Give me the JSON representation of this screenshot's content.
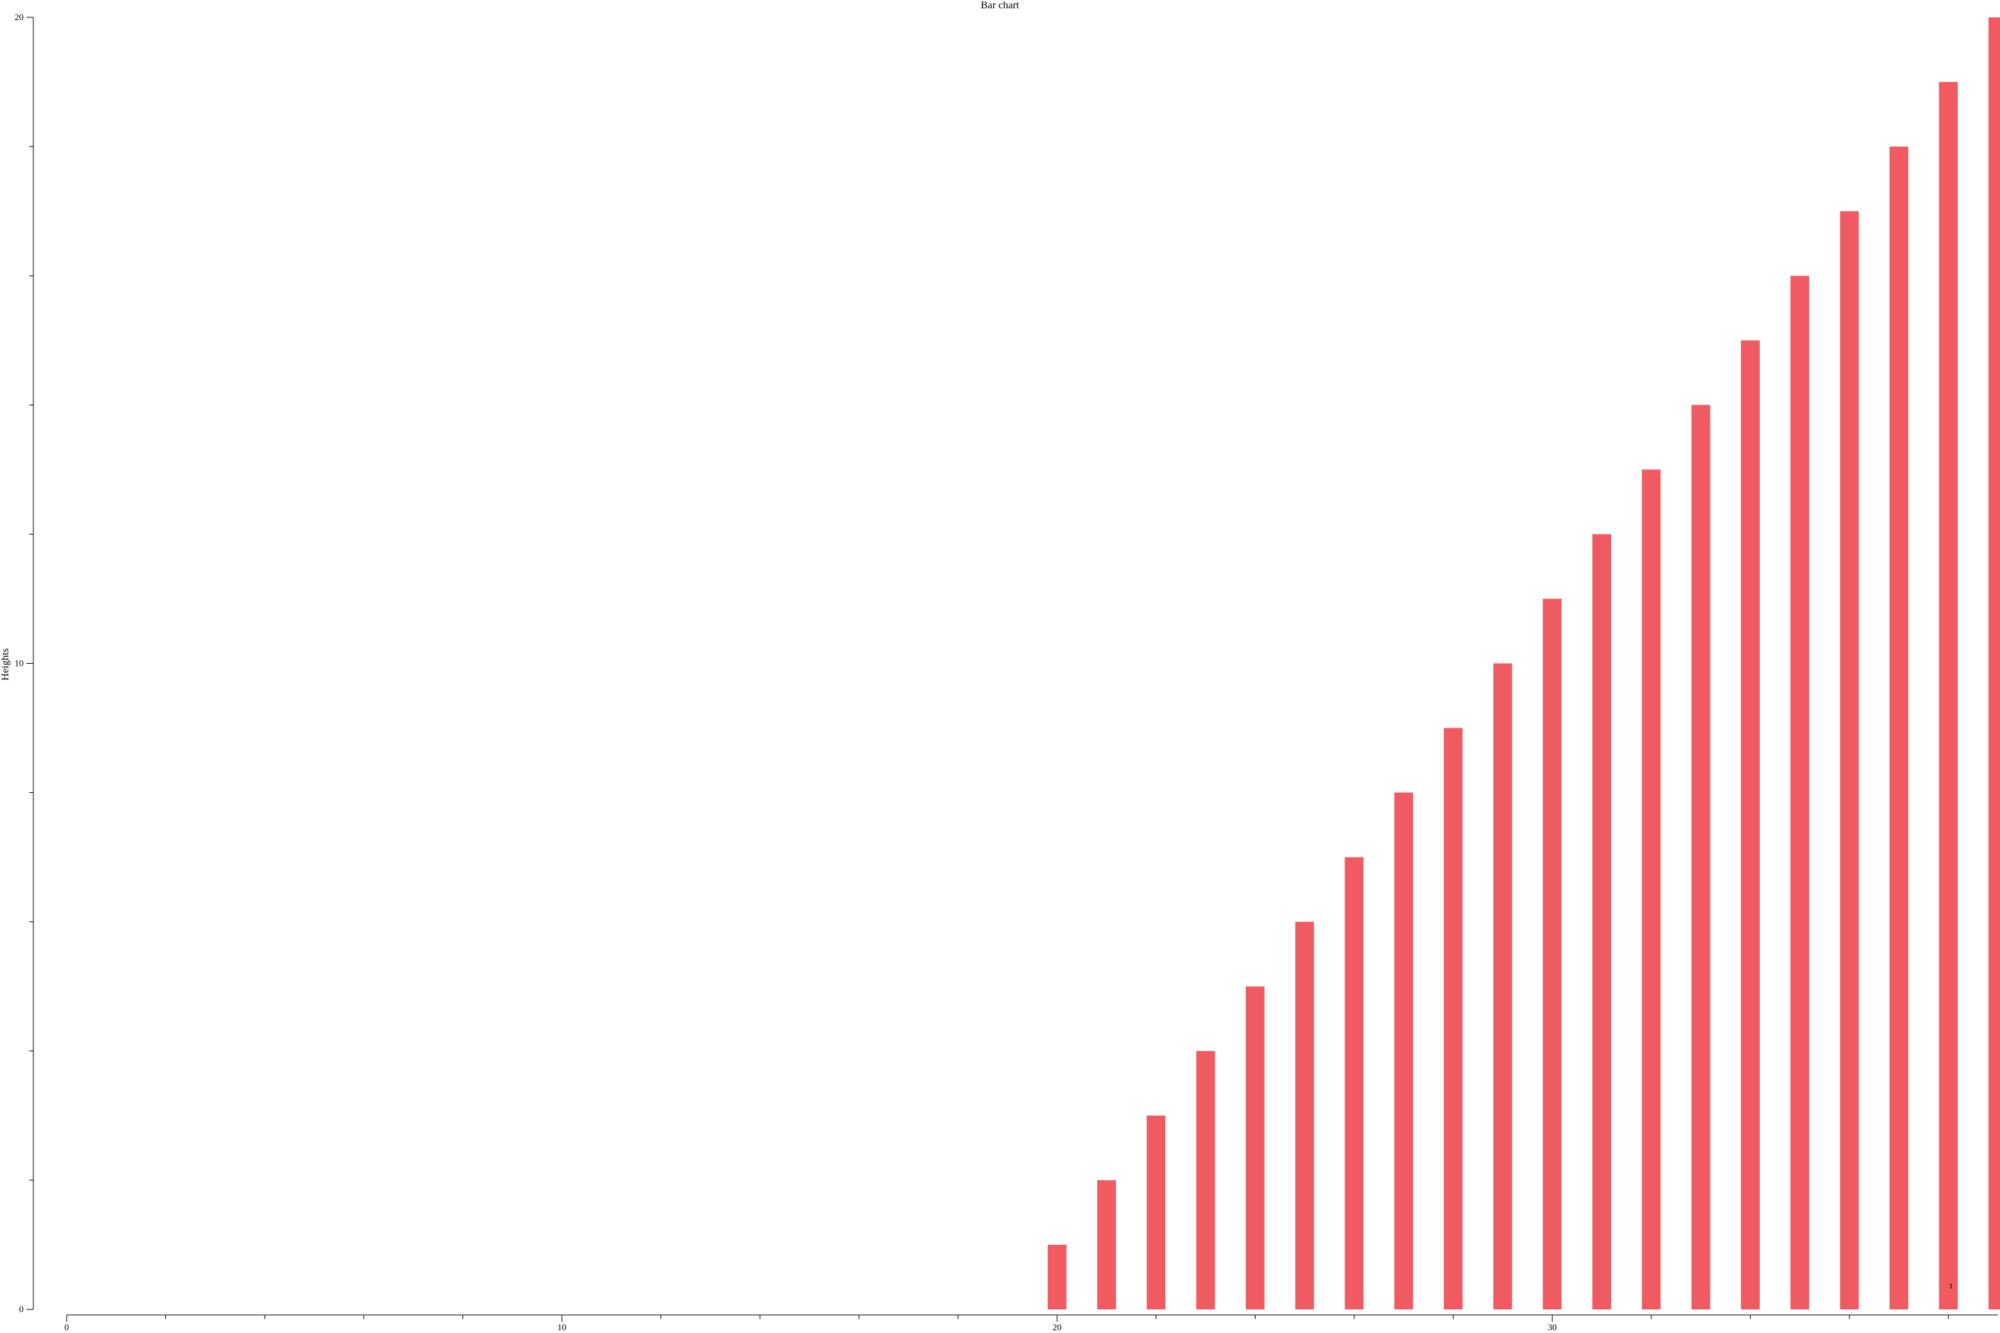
{
  "chart_data": {
    "type": "bar",
    "title": "Bar chart",
    "xlabel": "",
    "ylabel": "Heights",
    "xlim": [
      0,
      39
    ],
    "ylim": [
      0,
      20
    ],
    "x_ticks": [
      0,
      10,
      20,
      30
    ],
    "y_ticks": [
      0,
      10,
      20
    ],
    "x_minor_step": 2,
    "y_minor_step": 2,
    "grid": false,
    "legend": {
      "position": "bottom-right",
      "entries": [
        "t"
      ]
    },
    "color": "#f05a61",
    "series": [
      {
        "x": [
          20,
          21,
          22,
          23,
          24,
          25,
          26,
          27,
          28,
          29,
          30,
          31,
          32,
          33,
          34,
          35,
          36,
          37,
          38,
          39
        ],
        "values": [
          1,
          2,
          3,
          4,
          5,
          6,
          7,
          8,
          9,
          10,
          11,
          12,
          13,
          14,
          15,
          16,
          17,
          18,
          19,
          20
        ]
      }
    ]
  }
}
